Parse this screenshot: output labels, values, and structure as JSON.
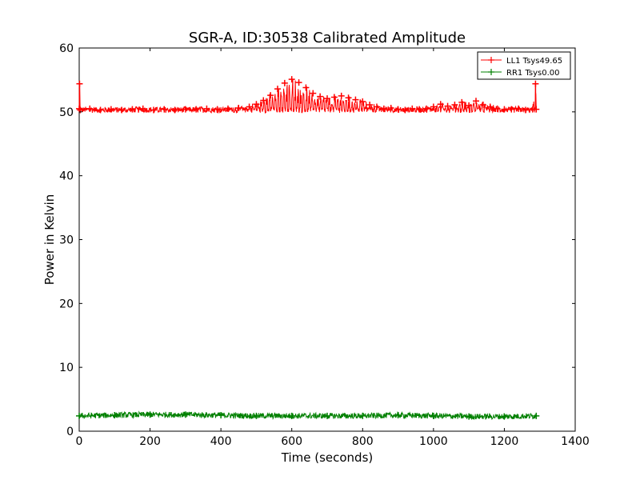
{
  "chart_data": {
    "type": "line",
    "title": "SGR-A, ID:30538 Calibrated Amplitude",
    "xlabel": "Time (seconds)",
    "ylabel": "Power in Kelvin",
    "xlim": [
      0,
      1400
    ],
    "ylim": [
      0,
      60
    ],
    "xticks": [
      0,
      200,
      400,
      600,
      800,
      1000,
      1200,
      1400
    ],
    "yticks": [
      0,
      10,
      20,
      30,
      40,
      50,
      60
    ],
    "grid": false,
    "legend_position": "top-right",
    "series": [
      {
        "name": "LL1 Tsys49.65",
        "color": "#ff0000",
        "marker": "+",
        "x_range": [
          0,
          1290
        ],
        "baseline": 50.3,
        "points": [
          [
            0,
            50.5
          ],
          [
            1,
            54.4
          ],
          [
            3,
            50.3
          ],
          [
            30,
            50.5
          ],
          [
            60,
            50.3
          ],
          [
            90,
            50.4
          ],
          [
            120,
            50.3
          ],
          [
            150,
            50.4
          ],
          [
            180,
            50.5
          ],
          [
            210,
            50.3
          ],
          [
            240,
            50.4
          ],
          [
            270,
            50.3
          ],
          [
            300,
            50.4
          ],
          [
            330,
            50.4
          ],
          [
            360,
            50.5
          ],
          [
            390,
            50.4
          ],
          [
            420,
            50.5
          ],
          [
            450,
            50.6
          ],
          [
            480,
            50.8
          ],
          [
            500,
            51.2
          ],
          [
            520,
            51.8
          ],
          [
            540,
            52.6
          ],
          [
            560,
            53.6
          ],
          [
            580,
            54.5
          ],
          [
            600,
            55.1
          ],
          [
            620,
            54.6
          ],
          [
            640,
            53.8
          ],
          [
            660,
            52.9
          ],
          [
            680,
            52.4
          ],
          [
            700,
            52.1
          ],
          [
            720,
            52.3
          ],
          [
            740,
            52.5
          ],
          [
            760,
            52.2
          ],
          [
            780,
            51.9
          ],
          [
            800,
            51.6
          ],
          [
            820,
            51.1
          ],
          [
            840,
            50.8
          ],
          [
            860,
            50.5
          ],
          [
            880,
            50.6
          ],
          [
            900,
            50.4
          ],
          [
            920,
            50.3
          ],
          [
            940,
            50.5
          ],
          [
            960,
            50.4
          ],
          [
            980,
            50.5
          ],
          [
            1000,
            50.8
          ],
          [
            1020,
            51.2
          ],
          [
            1040,
            50.9
          ],
          [
            1060,
            51.1
          ],
          [
            1080,
            51.5
          ],
          [
            1100,
            51.0
          ],
          [
            1120,
            51.7
          ],
          [
            1140,
            51.1
          ],
          [
            1160,
            50.8
          ],
          [
            1180,
            50.5
          ],
          [
            1200,
            50.4
          ],
          [
            1220,
            50.4
          ],
          [
            1240,
            50.5
          ],
          [
            1260,
            50.3
          ],
          [
            1280,
            50.4
          ],
          [
            1288,
            54.4
          ],
          [
            1290,
            50.4
          ]
        ]
      },
      {
        "name": "RR1 Tsys0.00",
        "color": "#008000",
        "marker": "+",
        "x_range": [
          0,
          1290
        ],
        "baseline": 2.4,
        "points": [
          [
            0,
            2.4
          ],
          [
            100,
            2.5
          ],
          [
            200,
            2.6
          ],
          [
            300,
            2.6
          ],
          [
            400,
            2.5
          ],
          [
            500,
            2.4
          ],
          [
            600,
            2.4
          ],
          [
            700,
            2.4
          ],
          [
            800,
            2.4
          ],
          [
            900,
            2.5
          ],
          [
            1000,
            2.4
          ],
          [
            1100,
            2.3
          ],
          [
            1200,
            2.3
          ],
          [
            1290,
            2.4
          ]
        ]
      }
    ]
  }
}
